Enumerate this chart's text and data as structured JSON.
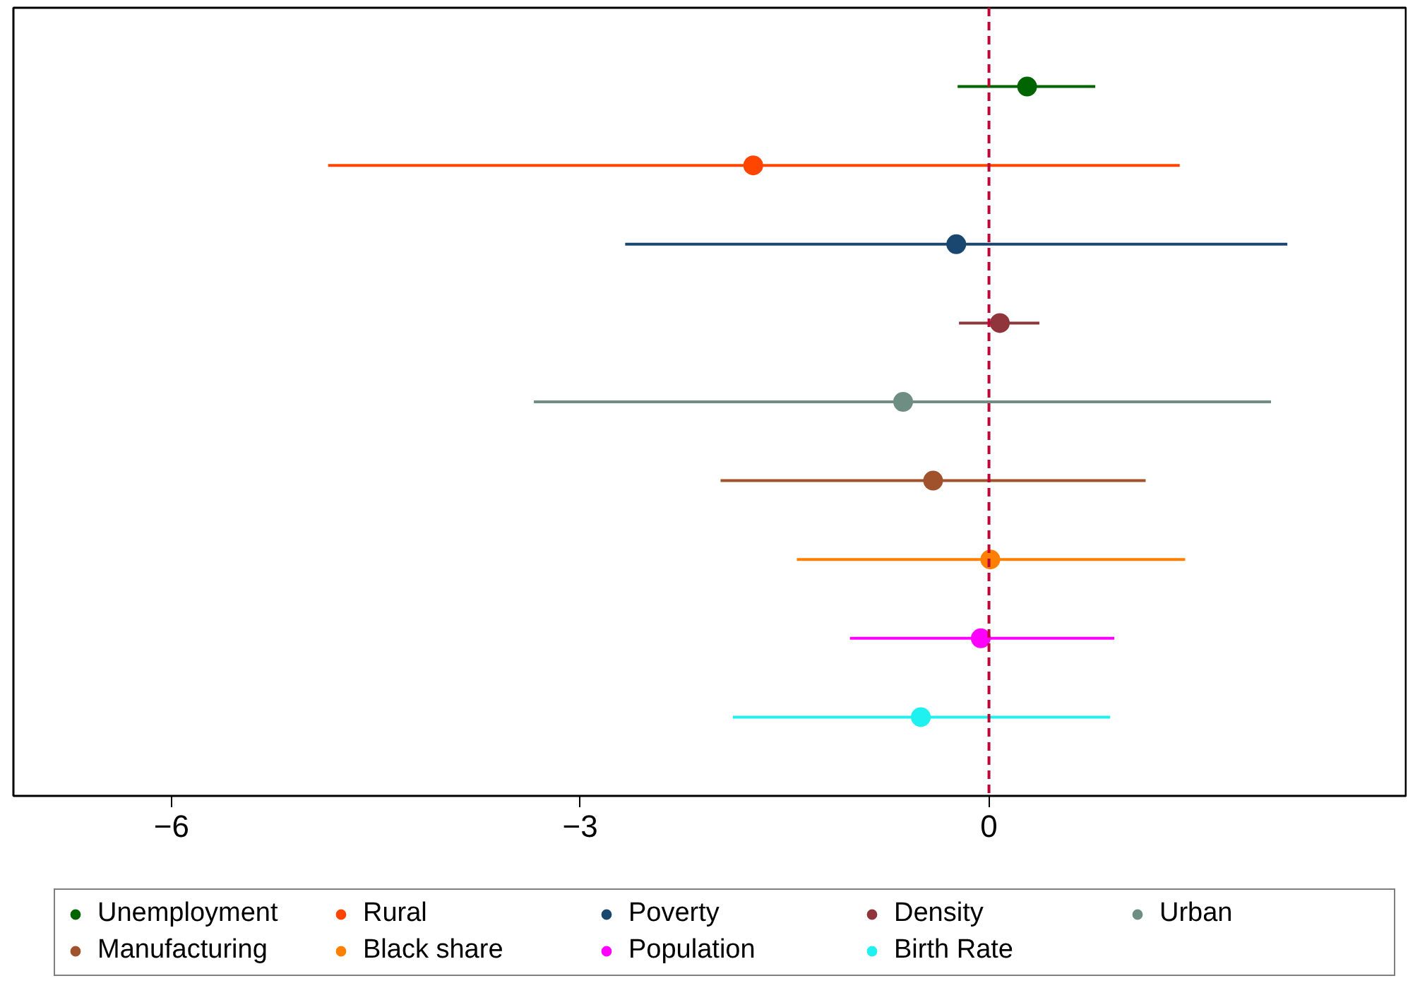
{
  "chart_data": {
    "type": "scatter",
    "orientation": "horizontal",
    "categories": [
      null,
      null,
      null,
      null,
      null,
      null,
      null,
      null,
      null
    ],
    "xlim": [
      -7.16,
      3.06
    ],
    "xticks": [
      -6,
      -3,
      0
    ],
    "tick_labels": "x",
    "legend": "bottom",
    "marker": "circle",
    "ref_lines": [
      {
        "axis": "x",
        "value": 0,
        "color": "#c10534",
        "line_style": "dashed"
      }
    ],
    "series": [
      {
        "name": "Unemployment",
        "color": "#006400",
        "values": [
          0.28,
          null,
          null,
          null,
          null,
          null,
          null,
          null,
          null
        ],
        "errors": [
          [
            -0.23,
            0.78
          ],
          null,
          null,
          null,
          null,
          null,
          null,
          null,
          null
        ]
      },
      {
        "name": "Rural",
        "color": "#ff4500",
        "values": [
          null,
          -1.73,
          null,
          null,
          null,
          null,
          null,
          null,
          null
        ],
        "errors": [
          null,
          [
            -4.85,
            1.4
          ],
          null,
          null,
          null,
          null,
          null,
          null,
          null
        ]
      },
      {
        "name": "Poverty",
        "color": "#1a476f",
        "values": [
          null,
          null,
          -0.24,
          null,
          null,
          null,
          null,
          null,
          null
        ],
        "errors": [
          null,
          null,
          [
            -2.67,
            2.19
          ],
          null,
          null,
          null,
          null,
          null,
          null
        ]
      },
      {
        "name": "Density",
        "color": "#90353b",
        "values": [
          null,
          null,
          null,
          0.08,
          null,
          null,
          null,
          null,
          null
        ],
        "errors": [
          null,
          null,
          null,
          [
            -0.22,
            0.37
          ],
          null,
          null,
          null,
          null,
          null
        ]
      },
      {
        "name": "Urban",
        "color": "#6e8e84",
        "values": [
          null,
          null,
          null,
          null,
          -0.63,
          null,
          null,
          null,
          null
        ],
        "errors": [
          null,
          null,
          null,
          null,
          [
            -3.34,
            2.07
          ],
          null,
          null,
          null,
          null
        ]
      },
      {
        "name": "Manufacturing",
        "color": "#a0522d",
        "values": [
          null,
          null,
          null,
          null,
          null,
          -0.41,
          null,
          null,
          null
        ],
        "errors": [
          null,
          null,
          null,
          null,
          null,
          [
            -1.97,
            1.15
          ],
          null,
          null,
          null
        ]
      },
      {
        "name": "Black share",
        "color": "#ff7f00",
        "values": [
          null,
          null,
          null,
          null,
          null,
          null,
          0.01,
          null,
          null
        ],
        "errors": [
          null,
          null,
          null,
          null,
          null,
          null,
          [
            -1.41,
            1.44
          ],
          null,
          null
        ]
      },
      {
        "name": "Population",
        "color": "#ff00ff",
        "values": [
          null,
          null,
          null,
          null,
          null,
          null,
          null,
          -0.06,
          null
        ],
        "errors": [
          null,
          null,
          null,
          null,
          null,
          null,
          null,
          [
            -1.02,
            0.92
          ],
          null
        ]
      },
      {
        "name": "Birth Rate",
        "color": "#1ff0f0",
        "values": [
          null,
          null,
          null,
          null,
          null,
          null,
          null,
          null,
          -0.5
        ],
        "errors": [
          null,
          null,
          null,
          null,
          null,
          null,
          null,
          null,
          [
            -1.88,
            0.89
          ]
        ]
      }
    ]
  }
}
